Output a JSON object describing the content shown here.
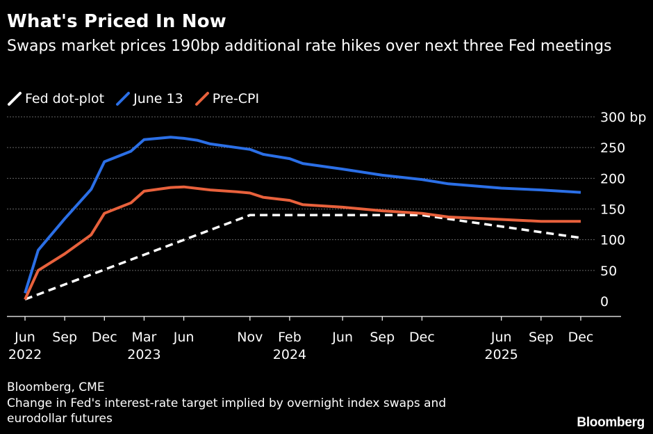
{
  "title": "What's Priced In Now",
  "subtitle": "Swaps market prices 190bp additional rate hikes over next three Fed meetings",
  "source": "Bloomberg, CME",
  "note": "Change in Fed's interest-rate target implied by overnight index swaps and eurodollar futures",
  "logo": "Bloomberg",
  "colors": {
    "background": "#000000",
    "grid": "#666666",
    "text": "#ffffff"
  },
  "chart_data": {
    "type": "line",
    "ylim": [
      0,
      300
    ],
    "y_ticks": [
      0,
      50,
      100,
      150,
      200,
      250,
      300
    ],
    "y_tick_labels": [
      "0",
      "50",
      "100",
      "150",
      "200",
      "250",
      "300 bp"
    ],
    "x_ticks": [
      {
        "x": "2022-06",
        "label": "Jun",
        "year": "2022"
      },
      {
        "x": "2022-09",
        "label": "Sep",
        "year": ""
      },
      {
        "x": "2022-12",
        "label": "Dec",
        "year": ""
      },
      {
        "x": "2023-03",
        "label": "Mar",
        "year": "2023"
      },
      {
        "x": "2023-06",
        "label": "Jun",
        "year": ""
      },
      {
        "x": "2023-11",
        "label": "Nov",
        "year": ""
      },
      {
        "x": "2024-02",
        "label": "Feb",
        "year": "2024"
      },
      {
        "x": "2024-06",
        "label": "Jun",
        "year": ""
      },
      {
        "x": "2024-09",
        "label": "Sep",
        "year": ""
      },
      {
        "x": "2024-12",
        "label": "Dec",
        "year": ""
      },
      {
        "x": "2025-06",
        "label": "Jun",
        "year": "2025"
      },
      {
        "x": "2025-09",
        "label": "Sep",
        "year": ""
      },
      {
        "x": "2025-12",
        "label": "Dec",
        "year": ""
      }
    ],
    "grid": true,
    "legend_position": "top-left",
    "series": [
      {
        "name": "Fed dot-plot",
        "color": "#ffffff",
        "style": "dashed",
        "points": [
          [
            "2022-06",
            3
          ],
          [
            "2023-11",
            140
          ],
          [
            "2024-12",
            140
          ],
          [
            "2025-12",
            103
          ]
        ]
      },
      {
        "name": "June 13",
        "color": "#2b6fe6",
        "style": "solid",
        "points": [
          [
            "2022-06",
            13
          ],
          [
            "2022-07",
            83
          ],
          [
            "2022-09",
            134
          ],
          [
            "2022-11",
            182
          ],
          [
            "2022-12",
            227
          ],
          [
            "2023-02",
            244
          ],
          [
            "2023-03",
            263
          ],
          [
            "2023-05",
            267
          ],
          [
            "2023-06",
            265
          ],
          [
            "2023-07",
            262
          ],
          [
            "2023-08",
            256
          ],
          [
            "2023-10",
            250
          ],
          [
            "2023-11",
            247
          ],
          [
            "2023-12",
            239
          ],
          [
            "2024-02",
            232
          ],
          [
            "2024-03",
            224
          ],
          [
            "2024-06",
            215
          ],
          [
            "2024-09",
            205
          ],
          [
            "2024-12",
            198
          ],
          [
            "2025-02",
            191
          ],
          [
            "2025-06",
            184
          ],
          [
            "2025-09",
            181
          ],
          [
            "2025-12",
            177
          ]
        ]
      },
      {
        "name": "Pre-CPI",
        "color": "#e8613c",
        "style": "solid",
        "points": [
          [
            "2022-06",
            3
          ],
          [
            "2022-07",
            50
          ],
          [
            "2022-09",
            77
          ],
          [
            "2022-11",
            108
          ],
          [
            "2022-12",
            143
          ],
          [
            "2023-02",
            160
          ],
          [
            "2023-03",
            179
          ],
          [
            "2023-05",
            185
          ],
          [
            "2023-06",
            186
          ],
          [
            "2023-08",
            181
          ],
          [
            "2023-10",
            178
          ],
          [
            "2023-11",
            176
          ],
          [
            "2023-12",
            169
          ],
          [
            "2024-02",
            164
          ],
          [
            "2024-03",
            157
          ],
          [
            "2024-06",
            153
          ],
          [
            "2024-09",
            147
          ],
          [
            "2024-12",
            143
          ],
          [
            "2025-02",
            137
          ],
          [
            "2025-06",
            133
          ],
          [
            "2025-09",
            130
          ],
          [
            "2025-12",
            130
          ]
        ]
      }
    ]
  }
}
